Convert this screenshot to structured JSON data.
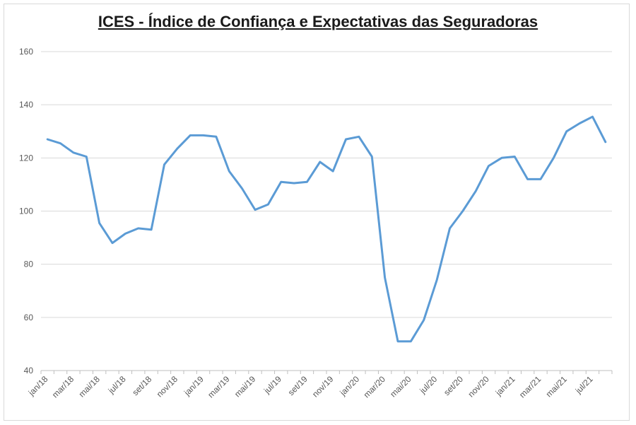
{
  "chart_data": {
    "type": "line",
    "title": "ICES - Índice de Confiança e Expectativas das Seguradoras",
    "xlabel": "",
    "ylabel": "",
    "ylim": [
      40,
      160
    ],
    "yticks": [
      "40",
      "60",
      "80",
      "100",
      "120",
      "140",
      "160"
    ],
    "grid": true,
    "legend": "none",
    "color": "#5b9bd5",
    "x": [
      "jan/18",
      "fev/18",
      "mar/18",
      "abr/18",
      "mai/18",
      "jun/18",
      "jul/18",
      "ago/18",
      "set/18",
      "out/18",
      "nov/18",
      "dez/18",
      "jan/19",
      "fev/19",
      "mar/19",
      "abr/19",
      "mai/19",
      "jun/19",
      "jul/19",
      "ago/19",
      "set/19",
      "out/19",
      "nov/19",
      "dez/19",
      "jan/20",
      "fev/20",
      "mar/20",
      "abr/20",
      "mai/20",
      "jun/20",
      "jul/20",
      "ago/20",
      "set/20",
      "out/20",
      "nov/20",
      "dez/20",
      "jan/21",
      "fev/21",
      "mar/21",
      "abr/21",
      "mai/21",
      "jun/21",
      "jul/21",
      "ago/21"
    ],
    "xtick_labels": [
      "jan/18",
      "mar/18",
      "mai/18",
      "jul/18",
      "set/18",
      "nov/18",
      "jan/19",
      "mar/19",
      "mai/19",
      "jul/19",
      "set/19",
      "nov/19",
      "jan/20",
      "mar/20",
      "mai/20",
      "jul/20",
      "set/20",
      "nov/20",
      "jan/21",
      "mar/21",
      "mai/21",
      "jul/21"
    ],
    "values": [
      127,
      125.5,
      122,
      120.5,
      95.5,
      88,
      91.5,
      93.5,
      93,
      117.5,
      123.5,
      128.5,
      128.5,
      128,
      115,
      108.5,
      100.5,
      102.5,
      111,
      110.5,
      111,
      118.5,
      115,
      127,
      128,
      120.5,
      75,
      51,
      51,
      59,
      74,
      93.5,
      100,
      107.5,
      117,
      120,
      120.5,
      112,
      112,
      120,
      130,
      133,
      135.5,
      126
    ]
  }
}
